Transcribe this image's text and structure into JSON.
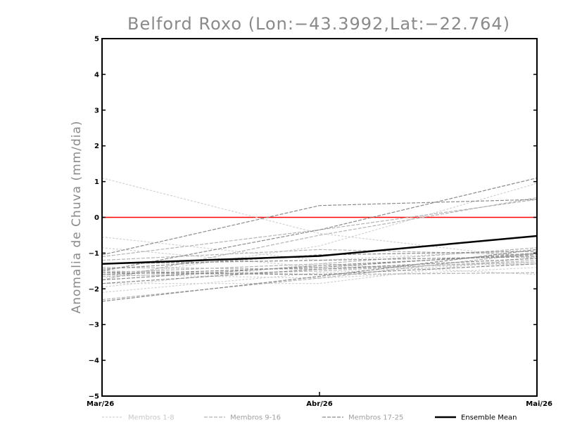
{
  "chart_data": {
    "type": "line",
    "title": "Belford Roxo (Lon:−43.3992,Lat:−22.764)",
    "xlabel": "",
    "ylabel": "Anomalia de Chuva (mm/dia)",
    "categories": [
      "Mar/26",
      "Abr/26",
      "Mai/26"
    ],
    "ylim": [
      -5,
      5
    ],
    "yticks": [
      "−5",
      "−4",
      "−3",
      "−2",
      "−1",
      "0",
      "1",
      "2",
      "3",
      "4",
      "5"
    ],
    "ytick_values": [
      -5,
      -4,
      -3,
      -2,
      -1,
      0,
      1,
      2,
      3,
      4,
      5
    ],
    "reference_line": {
      "value": 0,
      "color": "#ff0000"
    },
    "groups": [
      {
        "name": "Membros 1-8",
        "color": "#d2d2d2",
        "dash": "dotted",
        "series": [
          [
            1.1,
            -0.45,
            -1.15
          ],
          [
            -0.55,
            -1.2,
            -0.9
          ],
          [
            -1.7,
            -0.8,
            0.95
          ],
          [
            -1.85,
            -1.85,
            -1.1
          ],
          [
            -2.1,
            -1.55,
            -1.25
          ],
          [
            -0.85,
            -1.4,
            -1.3
          ],
          [
            -1.6,
            -1.7,
            -1.4
          ],
          [
            -1.95,
            -1.3,
            -1.6
          ]
        ]
      },
      {
        "name": "Membros 9-16",
        "color": "#b4b4b4",
        "dash": "dashed",
        "series": [
          [
            -1.1,
            -0.35,
            0.5
          ],
          [
            -1.4,
            -1.45,
            -1.25
          ],
          [
            -1.75,
            -0.5,
            0.55
          ],
          [
            -2.3,
            -1.7,
            -1.0
          ],
          [
            -1.5,
            -1.6,
            -1.55
          ],
          [
            -1.2,
            -0.9,
            -1.05
          ],
          [
            -1.55,
            -1.3,
            -0.85
          ],
          [
            -1.65,
            -1.5,
            -1.2
          ]
        ]
      },
      {
        "name": "Membros 17-25",
        "color": "#8c8c8c",
        "dash": "dashed",
        "series": [
          [
            -1.05,
            0.33,
            0.5
          ],
          [
            -2.35,
            -1.65,
            -0.9
          ],
          [
            -1.5,
            -0.35,
            1.1
          ],
          [
            -1.6,
            -1.4,
            -1.0
          ],
          [
            -1.75,
            -1.35,
            -1.05
          ],
          [
            -1.45,
            -1.05,
            -0.95
          ],
          [
            -1.85,
            -1.45,
            -1.15
          ],
          [
            -1.3,
            -1.2,
            -1.1
          ],
          [
            -1.55,
            -1.6,
            -1.3
          ]
        ]
      }
    ],
    "mean": {
      "name": "Ensemble Mean",
      "color": "#000000",
      "values": [
        -1.3,
        -1.08,
        -0.52
      ]
    },
    "legend": [
      "Membros 1-8",
      "Membros 9-16",
      "Membros 17-25",
      "Ensemble Mean"
    ],
    "legend_colors": [
      "#d2d2d2",
      "#b4b4b4",
      "#8c8c8c",
      "#000000"
    ],
    "grid": false
  }
}
